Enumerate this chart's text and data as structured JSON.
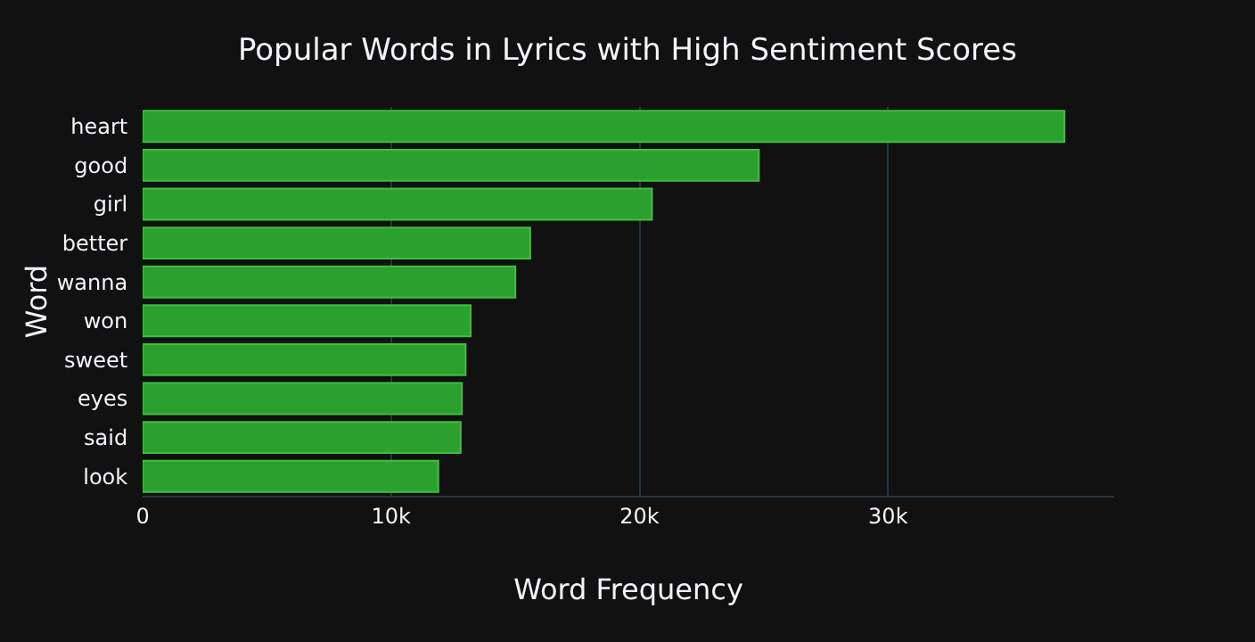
{
  "chart_data": {
    "type": "bar",
    "orientation": "horizontal",
    "title": "Popular Words in Lyrics with High Sentiment Scores",
    "xlabel": "Word Frequency",
    "ylabel": "Word",
    "categories": [
      "heart",
      "good",
      "girl",
      "better",
      "wanna",
      "won",
      "sweet",
      "eyes",
      "said",
      "look"
    ],
    "values": [
      37100,
      24800,
      20500,
      15600,
      15000,
      13200,
      13000,
      12850,
      12800,
      11900
    ],
    "color": "#2ca02c",
    "xlim": [
      0,
      39100
    ],
    "xticks": [
      0,
      {
        "value": 10000,
        "label": "10k"
      },
      {
        "value": 20000,
        "label": "20k"
      },
      {
        "value": 30000,
        "label": "30k"
      }
    ],
    "grid": "x"
  }
}
